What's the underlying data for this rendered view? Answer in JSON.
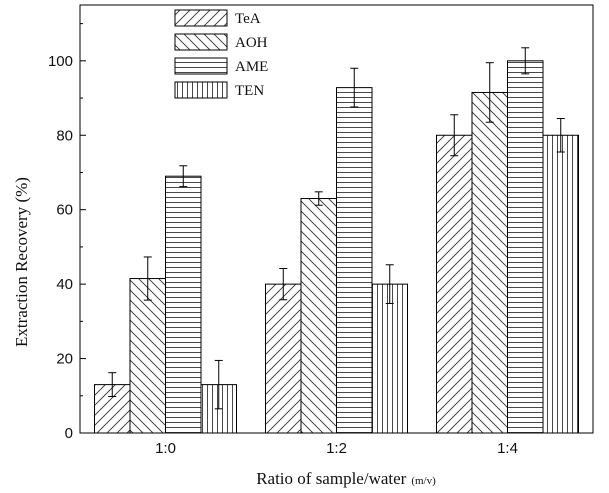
{
  "chart_data": {
    "type": "bar",
    "xlabel": "Ratio of sample/water",
    "xlabel_unit": "(m/v)",
    "ylabel": "Extraction Recovery (%)",
    "categories": [
      "1:0",
      "1:2",
      "1:4"
    ],
    "ylim": [
      0,
      115
    ],
    "yticks": [
      0,
      20,
      40,
      60,
      80,
      100
    ],
    "grid": false,
    "legend_position": "top-left",
    "series": [
      {
        "name": "TeA",
        "pattern": "diag-forward",
        "values": [
          13,
          40,
          80
        ],
        "errors": [
          3.2,
          4.2,
          5.5
        ]
      },
      {
        "name": "AOH",
        "pattern": "diag-back",
        "values": [
          41.5,
          63,
          91.5
        ],
        "errors": [
          5.8,
          1.8,
          8.0
        ]
      },
      {
        "name": "AME",
        "pattern": "horizontal",
        "values": [
          69,
          92.8,
          100
        ],
        "errors": [
          2.8,
          5.2,
          3.5
        ]
      },
      {
        "name": "TEN",
        "pattern": "vertical",
        "values": [
          13,
          40,
          80
        ],
        "errors": [
          6.5,
          5.2,
          4.5
        ]
      }
    ]
  }
}
